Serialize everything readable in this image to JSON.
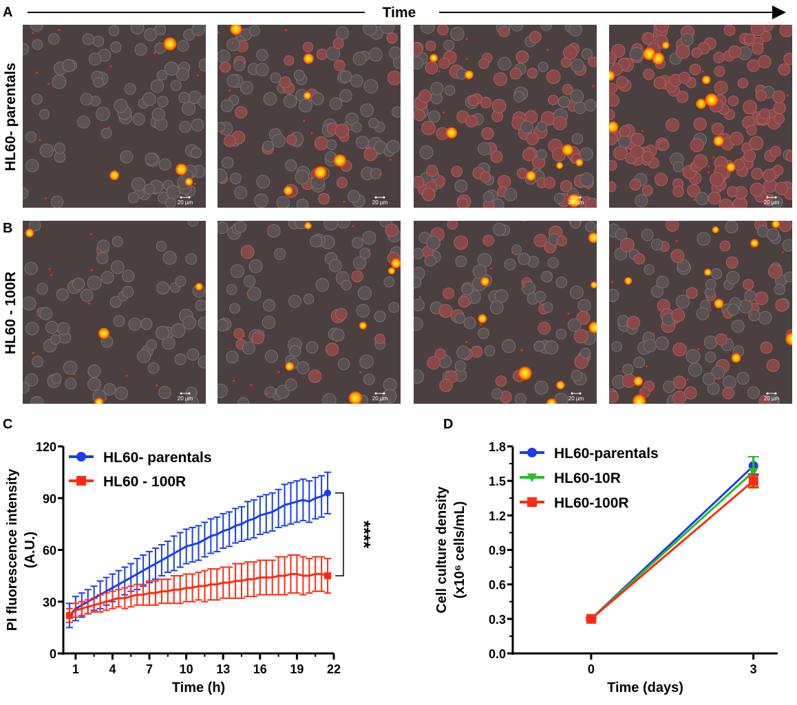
{
  "figure": {
    "panel_labels": {
      "A": "A",
      "B": "B",
      "C": "C",
      "D": "D"
    },
    "time_label": "Time",
    "row_labels": [
      "HL60- parentals",
      "HL60 - 100R"
    ],
    "scale_bar_label": "20 µm",
    "colors": {
      "blue": "#1a3cf0",
      "red": "#ff2a10",
      "green": "#22c022",
      "bg_image": "#4a4040"
    }
  },
  "chart_data": [
    {
      "type": "line",
      "panel": "C",
      "title": "",
      "xlabel": "Time (h)",
      "ylabel": "PI fluorescence intensity",
      "ylabel2": "(A.U.)",
      "xlim": [
        0,
        22
      ],
      "ylim": [
        0,
        120
      ],
      "xticks": [
        "1",
        "4",
        "7",
        "10",
        "13",
        "16",
        "19",
        "22"
      ],
      "yticks": [
        "0",
        "30",
        "60",
        "90",
        "120"
      ],
      "significance": "****",
      "legend_position": "top-left",
      "x": [
        0.5,
        1,
        1.5,
        2,
        2.5,
        3,
        3.5,
        4,
        4.5,
        5,
        5.5,
        6,
        6.5,
        7,
        7.5,
        8,
        8.5,
        9,
        9.5,
        10,
        10.5,
        11,
        11.5,
        12,
        12.5,
        13,
        13.5,
        14,
        14.5,
        15,
        15.5,
        16,
        16.5,
        17,
        17.5,
        18,
        18.5,
        19,
        19.5,
        20,
        20.5,
        21,
        21.5
      ],
      "series": [
        {
          "name": "HL60- parentals",
          "color": "#1a3cf0",
          "marker": "circle",
          "values": [
            22,
            26,
            28,
            30,
            32,
            34,
            36,
            38,
            40,
            42,
            44,
            46,
            48,
            50,
            52,
            54,
            56,
            58,
            60,
            62,
            63,
            64,
            66,
            68,
            69,
            71,
            72,
            74,
            75,
            77,
            78,
            80,
            81,
            82,
            84,
            86,
            87,
            88,
            89,
            88,
            90,
            91,
            93
          ],
          "error": [
            7,
            7,
            7,
            7,
            7,
            8,
            8,
            8,
            8,
            8,
            8,
            9,
            9,
            9,
            9,
            9,
            9,
            10,
            10,
            10,
            10,
            10,
            10,
            10,
            10,
            10,
            10,
            10,
            10,
            11,
            11,
            11,
            11,
            11,
            11,
            12,
            12,
            12,
            12,
            12,
            12,
            12,
            12
          ]
        },
        {
          "name": "HL60 - 100R",
          "color": "#ff2a10",
          "marker": "square",
          "values": [
            22,
            25,
            26,
            27,
            28,
            29,
            30,
            31,
            32,
            32,
            33,
            34,
            34,
            35,
            35,
            36,
            36,
            37,
            37,
            38,
            38,
            39,
            39,
            40,
            40,
            41,
            41,
            42,
            42,
            43,
            43,
            44,
            44,
            44,
            45,
            45,
            46,
            46,
            45,
            45,
            46,
            46,
            45
          ],
          "error": [
            4,
            4,
            4,
            4,
            4,
            5,
            5,
            5,
            5,
            6,
            6,
            6,
            6,
            7,
            7,
            7,
            7,
            8,
            8,
            8,
            8,
            8,
            9,
            9,
            9,
            9,
            9,
            10,
            10,
            10,
            10,
            10,
            10,
            10,
            11,
            11,
            11,
            11,
            11,
            10,
            10,
            10,
            10
          ]
        }
      ]
    },
    {
      "type": "line",
      "panel": "D",
      "title": "",
      "xlabel": "Time (days)",
      "ylabel": "Cell culture density",
      "ylabel2": "(x10⁶ cells/mL)",
      "xlim": [
        -1.45,
        3.45
      ],
      "ylim": [
        0,
        1.8
      ],
      "xticks": [
        "0",
        "3"
      ],
      "yticks": [
        "0.0",
        "0.3",
        "0.6",
        "0.9",
        "1.2",
        "1.5",
        "1.8"
      ],
      "legend_position": "top-left",
      "x": [
        0,
        3
      ],
      "series": [
        {
          "name": "HL60-parentals",
          "color": "#1a3cf0",
          "marker": "circle",
          "values": [
            0.3,
            1.63
          ],
          "error": [
            0.01,
            0.08
          ]
        },
        {
          "name": "HL60-10R",
          "color": "#22c022",
          "marker": "triangle-down",
          "values": [
            0.3,
            1.58
          ],
          "error": [
            0.01,
            0.13
          ]
        },
        {
          "name": "HL60-100R",
          "color": "#ff2a10",
          "marker": "square",
          "values": [
            0.3,
            1.5
          ],
          "error": [
            0.01,
            0.06
          ]
        }
      ]
    }
  ]
}
